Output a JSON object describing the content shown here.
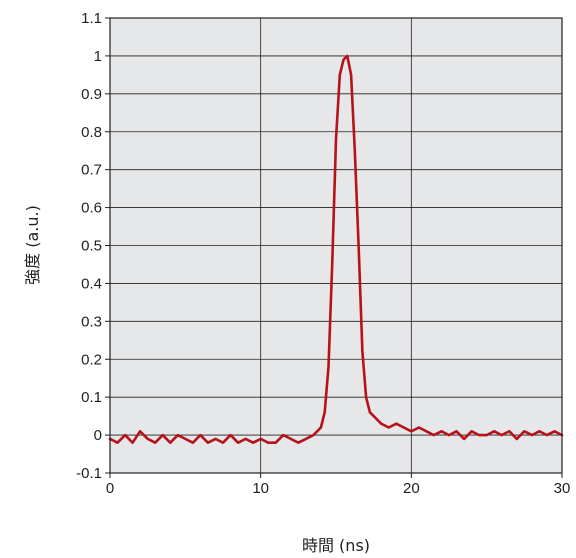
{
  "chart_data": {
    "type": "line",
    "title": "",
    "xlabel": "時間 (ns)",
    "ylabel": "強度 (a.u.)",
    "xlim": [
      0,
      30
    ],
    "ylim": [
      -0.1,
      1.1
    ],
    "x_ticks": [
      0,
      10,
      20,
      30
    ],
    "y_ticks": [
      -0.1,
      0,
      0.1,
      0.2,
      0.3,
      0.4,
      0.5,
      0.6,
      0.7,
      0.8,
      0.9,
      1,
      1.1
    ],
    "y_tick_labels": [
      "-0.1",
      "0",
      "0.1",
      "0.2",
      "0.3",
      "0.4",
      "0.5",
      "0.6",
      "0.7",
      "0.8",
      "0.9",
      "1",
      "1.1"
    ],
    "grid": true,
    "colors": {
      "plot_background": "#e6e7e8",
      "grid": "#231f20",
      "series": "#b5121b"
    },
    "series": [
      {
        "x": [
          0,
          0.5,
          1,
          1.5,
          2,
          2.5,
          3,
          3.5,
          4,
          4.5,
          5,
          5.5,
          6,
          6.5,
          7,
          7.5,
          8,
          8.5,
          9,
          9.5,
          10,
          10.5,
          11,
          11.5,
          12,
          12.5,
          13,
          13.5,
          14,
          14.25,
          14.5,
          14.75,
          15,
          15.25,
          15.5,
          15.75,
          16,
          16.25,
          16.5,
          16.75,
          17,
          17.25,
          17.5,
          17.75,
          18,
          18.5,
          19,
          19.5,
          20,
          20.5,
          21,
          21.5,
          22,
          22.5,
          23,
          23.5,
          24,
          24.5,
          25,
          25.5,
          26,
          26.5,
          27,
          27.5,
          28,
          28.5,
          29,
          29.5,
          30
        ],
        "values": [
          -0.01,
          -0.02,
          0.0,
          -0.02,
          0.01,
          -0.01,
          -0.02,
          0.0,
          -0.02,
          0.0,
          -0.01,
          -0.02,
          0.0,
          -0.02,
          -0.01,
          -0.02,
          0.0,
          -0.02,
          -0.01,
          -0.02,
          -0.01,
          -0.02,
          -0.02,
          0.0,
          -0.01,
          -0.02,
          -0.01,
          0.0,
          0.02,
          0.06,
          0.18,
          0.45,
          0.78,
          0.95,
          0.99,
          1.0,
          0.95,
          0.75,
          0.5,
          0.22,
          0.1,
          0.06,
          0.05,
          0.04,
          0.03,
          0.02,
          0.03,
          0.02,
          0.01,
          0.02,
          0.01,
          0.0,
          0.01,
          0.0,
          0.01,
          -0.01,
          0.01,
          0.0,
          0.0,
          0.01,
          0.0,
          0.01,
          -0.01,
          0.01,
          0.0,
          0.01,
          0.0,
          0.01,
          0.0
        ]
      }
    ]
  }
}
